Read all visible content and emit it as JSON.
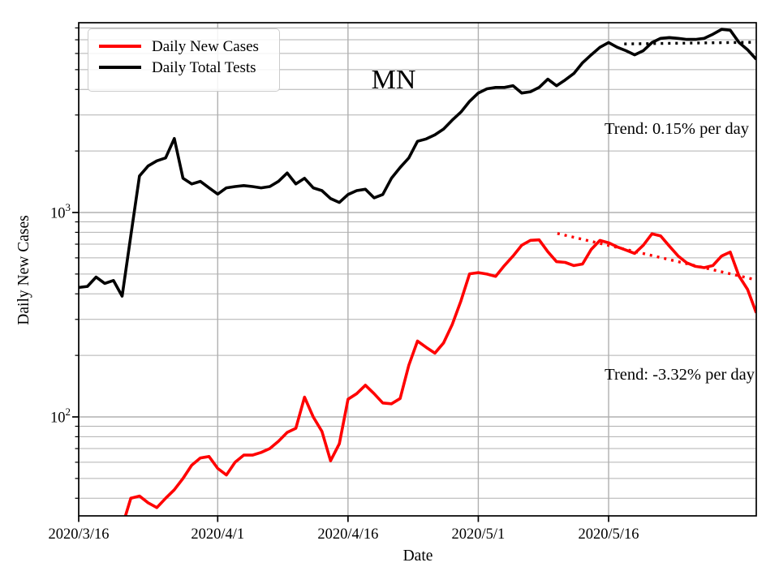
{
  "figure": {
    "title": "MN",
    "xlabel": "Date",
    "ylabel": "Daily New Cases",
    "background": "#ffffff"
  },
  "legend": {
    "items": [
      {
        "label": "Daily New Cases",
        "color": "#ff0000"
      },
      {
        "label": "Daily Total Tests",
        "color": "#000000"
      }
    ]
  },
  "annotations": {
    "tests_trend": "Trend: 0.15% per day",
    "cases_trend": "Trend: -3.32% per day"
  },
  "chart_data": {
    "type": "line",
    "title": "MN",
    "xlabel": "Date",
    "ylabel": "Daily New Cases",
    "y_scale": "log",
    "grid": "both",
    "grid_color": "#b0b0b0",
    "legend_position": "upper left",
    "xlim_days": [
      0,
      78
    ],
    "ylim": [
      32.8,
      8480
    ],
    "x_start_date": "2020/3/16",
    "x_end_date": "2020/6/2",
    "dates": [
      "3/16",
      "3/17",
      "3/18",
      "3/19",
      "3/20",
      "3/21",
      "3/22",
      "3/23",
      "3/24",
      "3/25",
      "3/26",
      "3/27",
      "3/28",
      "3/29",
      "3/30",
      "3/31",
      "4/1",
      "4/2",
      "4/3",
      "4/4",
      "4/5",
      "4/6",
      "4/7",
      "4/8",
      "4/9",
      "4/10",
      "4/11",
      "4/12",
      "4/13",
      "4/14",
      "4/15",
      "4/16",
      "4/17",
      "4/18",
      "4/19",
      "4/20",
      "4/21",
      "4/22",
      "4/23",
      "4/24",
      "4/25",
      "4/26",
      "4/27",
      "4/28",
      "4/29",
      "4/30",
      "5/1",
      "5/2",
      "5/3",
      "5/4",
      "5/5",
      "5/6",
      "5/7",
      "5/8",
      "5/9",
      "5/10",
      "5/11",
      "5/12",
      "5/13",
      "5/14",
      "5/15",
      "5/16",
      "5/17",
      "5/18",
      "5/19",
      "5/20",
      "5/21",
      "5/22",
      "5/23",
      "5/24",
      "5/25",
      "5/26",
      "5/27",
      "5/28",
      "5/29",
      "5/30",
      "5/31",
      "6/1",
      "6/2"
    ],
    "series": [
      {
        "name": "Daily New Cases",
        "color": "#ff0000",
        "style": "solid",
        "values": [
          null,
          null,
          null,
          null,
          26,
          29,
          40,
          41,
          38,
          36,
          40,
          44,
          50,
          58,
          63,
          64,
          56,
          52,
          60,
          65,
          65,
          67,
          70,
          76,
          84,
          88,
          125,
          100,
          85,
          61,
          74,
          122,
          130,
          143,
          130,
          117,
          116,
          123,
          179,
          235,
          219,
          205,
          230,
          283,
          369,
          501,
          508,
          500,
          487,
          550,
          613,
          692,
          731,
          735,
          643,
          575,
          570,
          550,
          560,
          660,
          730,
          711,
          679,
          655,
          631,
          692,
          787,
          768,
          685,
          613,
          567,
          545,
          537,
          550,
          612,
          640,
          490,
          420,
          323
        ]
      },
      {
        "name": "Daily Total Tests",
        "color": "#000000",
        "style": "solid",
        "values": [
          430,
          435,
          483,
          450,
          465,
          390,
          770,
          1510,
          1690,
          1790,
          1850,
          2300,
          1470,
          1380,
          1420,
          1320,
          1230,
          1320,
          1340,
          1355,
          1340,
          1320,
          1340,
          1420,
          1560,
          1380,
          1470,
          1320,
          1280,
          1170,
          1120,
          1225,
          1280,
          1300,
          1180,
          1225,
          1470,
          1660,
          1850,
          2230,
          2290,
          2400,
          2560,
          2830,
          3100,
          3500,
          3840,
          4030,
          4090,
          4090,
          4170,
          3840,
          3900,
          4090,
          4490,
          4170,
          4450,
          4790,
          5400,
          5910,
          6430,
          6790,
          6430,
          6190,
          5910,
          6190,
          6790,
          7110,
          7180,
          7110,
          7030,
          7030,
          7110,
          7450,
          7870,
          7800,
          6800,
          6250,
          5620
        ]
      }
    ],
    "trend_lines": [
      {
        "name": "cases-trend",
        "label": "Trend: -3.32% per day",
        "color": "#ff0000",
        "style": "dotted",
        "points": [
          {
            "day": 55.1,
            "value": 790
          },
          {
            "day": 78,
            "value": 468
          }
        ]
      },
      {
        "name": "tests-trend",
        "label": "Trend: 0.15% per day",
        "color": "#000000",
        "style": "dotted",
        "points": [
          {
            "day": 62.8,
            "value": 6680
          },
          {
            "day": 78,
            "value": 6810
          }
        ]
      }
    ],
    "xticks": [
      {
        "label": "2020/3/16",
        "day": 0
      },
      {
        "label": "2020/4/1",
        "day": 16
      },
      {
        "label": "2020/4/16",
        "day": 31
      },
      {
        "label": "2020/5/1",
        "day": 46
      },
      {
        "label": "2020/5/16",
        "day": 61
      }
    ],
    "yticks": [
      {
        "base": "10",
        "exp": "2",
        "value": 100
      },
      {
        "base": "10",
        "exp": "3",
        "value": 1000
      }
    ]
  }
}
